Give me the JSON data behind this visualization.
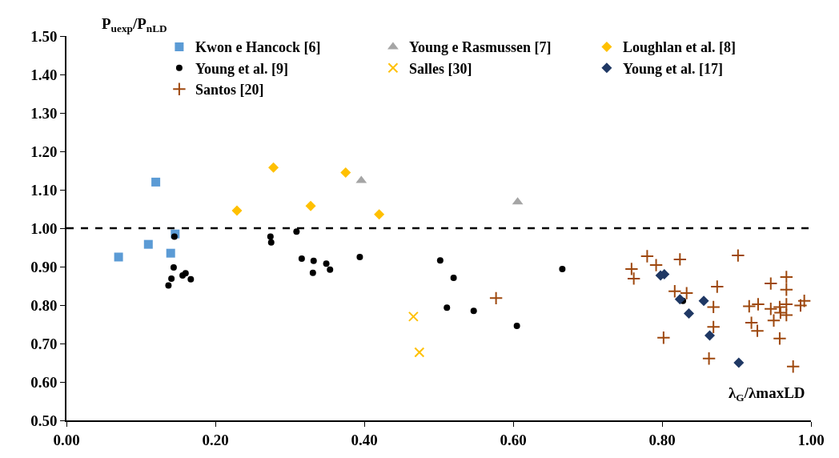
{
  "chart_data": {
    "type": "scatter",
    "xlabel": "λ$_{G}$/λmaxLD",
    "ylabel": "P$_{uexp}$/P$_{nLD}$",
    "xlim": [
      0,
      1
    ],
    "ylim": [
      0.5,
      1.5
    ],
    "xticks": [
      {
        "value": 0,
        "label": "0.00"
      },
      {
        "value": 0.2,
        "label": "0.20"
      },
      {
        "value": 0.4,
        "label": "0.40"
      },
      {
        "value": 0.6,
        "label": "0.60"
      },
      {
        "value": 0.8,
        "label": "0.80"
      },
      {
        "value": 1,
        "label": "1.00"
      }
    ],
    "yticks": [
      {
        "value": 0.5,
        "label": "0.50"
      },
      {
        "value": 0.6,
        "label": "0.60"
      },
      {
        "value": 0.7,
        "label": "0.70"
      },
      {
        "value": 0.8,
        "label": "0.80"
      },
      {
        "value": 0.9,
        "label": "0.90"
      },
      {
        "value": 1.0,
        "label": "1.00"
      },
      {
        "value": 1.1,
        "label": "1.10"
      },
      {
        "value": 1.2,
        "label": "1.20"
      },
      {
        "value": 1.3,
        "label": "1.30"
      },
      {
        "value": 1.4,
        "label": "1.40"
      },
      {
        "value": 1.5,
        "label": "1.50"
      }
    ],
    "legend": "top",
    "ref_lines": [
      {
        "axis": "y",
        "value": 1.0,
        "color": "#000000",
        "line_style": "dashed"
      }
    ],
    "series": [
      {
        "name": "Kwon e Hancock [6]",
        "color": "#5b9bd5",
        "marker": "square",
        "x": [
          0.07,
          0.11,
          0.12,
          0.14,
          0.146
        ],
        "values": [
          0.925,
          0.958,
          1.12,
          0.935,
          0.985
        ]
      },
      {
        "name": "Young e Rasmussen [7]",
        "color": "#a5a5a5",
        "marker": "triangle",
        "x": [
          0.396,
          0.606
        ],
        "values": [
          1.124,
          1.068
        ]
      },
      {
        "name": "Loughlan et al. [8]",
        "color": "#ffc000",
        "marker": "diamond",
        "x": [
          0.229,
          0.278,
          0.328,
          0.375,
          0.42
        ],
        "values": [
          1.046,
          1.158,
          1.058,
          1.145,
          1.036
        ]
      },
      {
        "name": "Young et al. [9]",
        "color": "#000000",
        "marker": "circle",
        "x": [
          0.145,
          0.144,
          0.141,
          0.137,
          0.156,
          0.16,
          0.167,
          0.274,
          0.275,
          0.309,
          0.316,
          0.332,
          0.331,
          0.349,
          0.354,
          0.394,
          0.502,
          0.52,
          0.511,
          0.547,
          0.605,
          0.666,
          0.828
        ],
        "values": [
          0.978,
          0.898,
          0.869,
          0.851,
          0.877,
          0.883,
          0.867,
          0.978,
          0.963,
          0.991,
          0.921,
          0.915,
          0.884,
          0.908,
          0.892,
          0.925,
          0.916,
          0.871,
          0.793,
          0.785,
          0.746,
          0.894,
          0.811
        ]
      },
      {
        "name": "Salles [30]",
        "color": "#ffc000",
        "marker": "x",
        "x": [
          0.466,
          0.474
        ],
        "values": [
          0.77,
          0.677
        ]
      },
      {
        "name": "Young et al. [17]",
        "color": "#1f3864",
        "marker": "diamond",
        "x": [
          0.803,
          0.798,
          0.824,
          0.856,
          0.836,
          0.864,
          0.903
        ],
        "values": [
          0.88,
          0.877,
          0.815,
          0.811,
          0.778,
          0.721,
          0.65
        ]
      },
      {
        "name": "Santos [20]",
        "color": "#9e480e",
        "marker": "cross",
        "x": [
          0.577,
          0.78,
          0.792,
          0.759,
          0.762,
          0.824,
          0.902,
          0.817,
          0.833,
          0.874,
          0.869,
          0.869,
          0.802,
          0.863,
          0.917,
          0.929,
          0.92,
          0.928,
          0.946,
          0.967,
          0.967,
          0.946,
          0.958,
          0.959,
          0.967,
          0.967,
          0.95,
          0.958,
          0.986,
          0.991,
          0.976
        ],
        "values": [
          0.818,
          0.927,
          0.904,
          0.894,
          0.869,
          0.919,
          0.929,
          0.836,
          0.831,
          0.848,
          0.795,
          0.743,
          0.715,
          0.661,
          0.797,
          0.802,
          0.754,
          0.733,
          0.856,
          0.873,
          0.84,
          0.79,
          0.795,
          0.78,
          0.802,
          0.774,
          0.76,
          0.713,
          0.799,
          0.811,
          0.64
        ]
      }
    ]
  }
}
